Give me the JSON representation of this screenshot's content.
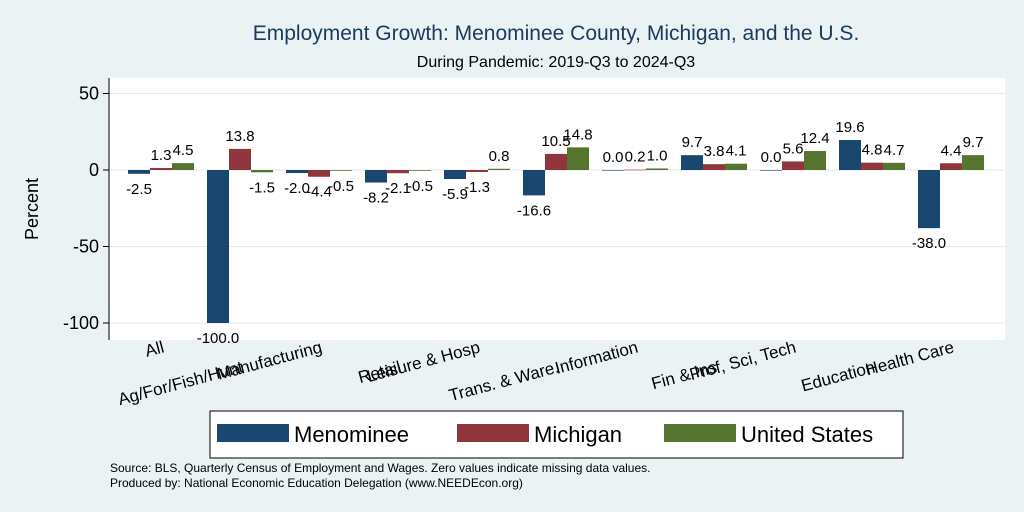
{
  "chart_data": {
    "type": "bar",
    "title": "Employment Growth: Menominee County, Michigan, and the U.S.",
    "subtitle": "During Pandemic: 2019-Q3 to 2024-Q3",
    "ylabel": "Percent",
    "xlabel": "",
    "ylim": [
      -105,
      55
    ],
    "yticks": [
      50,
      0,
      -50,
      -100
    ],
    "grid": true,
    "legend_position": "bottom",
    "categories": [
      "All",
      "Ag/For/Fish/Hunt",
      "Manufacturing",
      "Retail",
      "Leisure & Hosp",
      "Trans. & Ware.",
      "Information",
      "Fin & Ins",
      "Prof, Sci, Tech",
      "Education",
      "Health Care"
    ],
    "series": [
      {
        "name": "Menominee",
        "color": "#1a476f",
        "values": [
          -2.5,
          -100.0,
          -2.0,
          -8.2,
          -5.9,
          -16.6,
          0.0,
          9.7,
          0.0,
          19.6,
          -38.0
        ]
      },
      {
        "name": "Michigan",
        "color": "#90353b",
        "values": [
          1.3,
          13.8,
          -4.4,
          -2.1,
          -1.3,
          10.5,
          0.2,
          3.8,
          5.6,
          4.8,
          4.4
        ]
      },
      {
        "name": "United States",
        "color": "#55752f",
        "values": [
          4.5,
          -1.5,
          -0.5,
          -0.5,
          0.8,
          14.8,
          1.0,
          4.1,
          12.4,
          4.7,
          9.7
        ]
      }
    ]
  },
  "notes": {
    "source": "Source: BLS, Quarterly Census of Employment and Wages. Zero values indicate missing data values.",
    "produced": "Produced by: National Economic Education Delegation (www.NEEDEcon.org)"
  }
}
